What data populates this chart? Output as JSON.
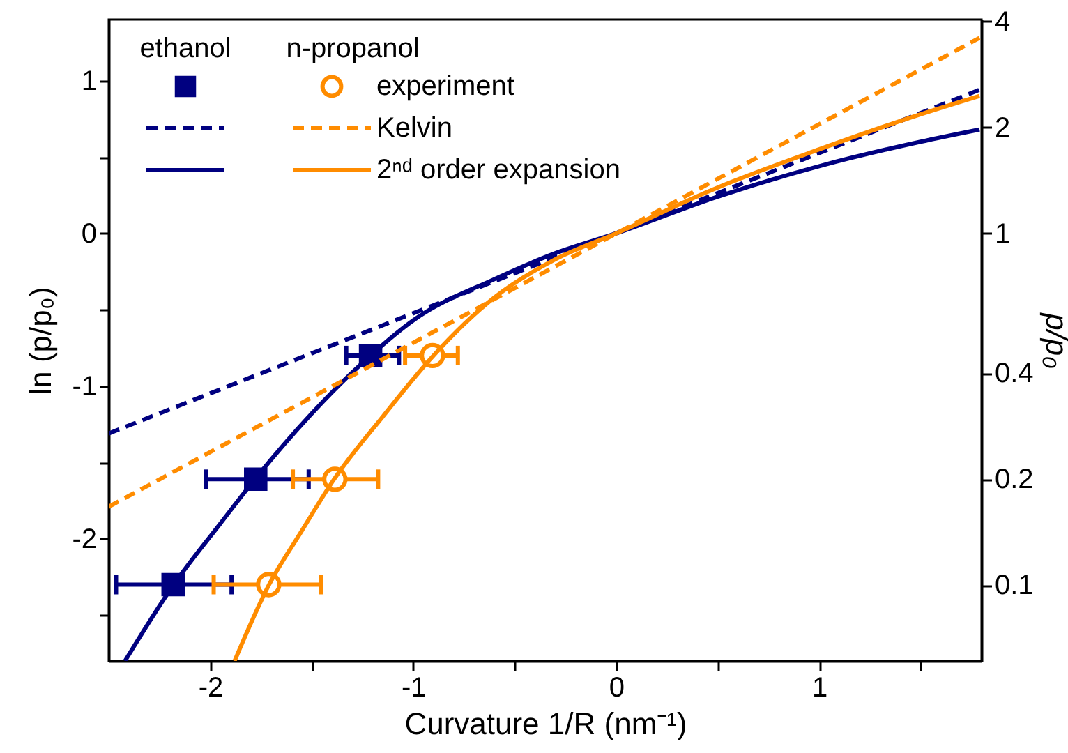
{
  "chart_data": {
    "type": "line",
    "xlabel": "Curvature 1/R (nm⁻¹)",
    "ylabel": "ln (p/p₀)",
    "y2label": "p/p₀",
    "xlim": [
      -2.5,
      1.8
    ],
    "xticks": [
      -2,
      {
        "value": -1.5,
        "label": null
      },
      -1,
      {
        "value": -0.5,
        "label": null
      },
      0,
      {
        "value": 0.5,
        "label": null
      },
      1,
      {
        "value": 1.5,
        "label": null
      }
    ],
    "ylim": [
      -2.8,
      1.4
    ],
    "yticks": [
      {
        "value": -2.5,
        "label": null
      },
      -2,
      {
        "value": -1.5,
        "label": null
      },
      -1,
      {
        "value": -0.5,
        "label": null
      },
      0,
      {
        "value": 0.5,
        "label": null
      },
      1
    ],
    "y2lim": [
      0.0608,
      4.055
    ],
    "y2ticks": [
      0.1,
      0.2,
      0.4,
      1,
      2,
      4
    ],
    "legend": "top left",
    "log": "y2",
    "annotations": [
      "ethanol",
      "n-propanol"
    ],
    "series": [
      {
        "type": "scatter",
        "marker": "square",
        "color": "#000080",
        "x": [
          -1.21,
          -1.776,
          -2.183
        ],
        "values": [
          -0.8,
          -1.61,
          -2.3
        ],
        "xerrors": [
          [
            -1.33,
            -1.07
          ],
          [
            -2.02,
            -1.515
          ],
          [
            -2.464,
            -1.895
          ]
        ]
      },
      {
        "line_style": "dashed",
        "color": "#000080",
        "x": [
          -2.5,
          1.79
        ],
        "values": [
          -1.31,
          0.94
        ]
      },
      {
        "line_style": "solid",
        "color": "#000080",
        "x": [
          -2.42,
          -2.18,
          -1.95,
          -1.78,
          -1.5,
          -1.21,
          -1.0,
          -0.6,
          -0.3,
          0,
          0.5,
          1.0,
          1.5,
          1.79
        ],
        "values": [
          -2.8,
          -2.3,
          -1.9,
          -1.61,
          -1.18,
          -0.8,
          -0.57,
          -0.3,
          -0.13,
          0,
          0.24,
          0.44,
          0.6,
          0.68
        ]
      },
      {
        "name": "experiment",
        "type": "scatter",
        "marker": "circle",
        "color": "#ff8c00",
        "x": [
          -0.905,
          -1.386,
          -1.712
        ],
        "values": [
          -0.8,
          -1.61,
          -2.3
        ],
        "xerrors": [
          [
            -1.04,
            -0.78
          ],
          [
            -1.593,
            -1.173
          ],
          [
            -1.983,
            -1.454
          ]
        ]
      },
      {
        "name": "Kelvin",
        "line_style": "dashed",
        "color": "#ff8c00",
        "x": [
          -2.5,
          1.79
        ],
        "values": [
          -1.79,
          1.28
        ]
      },
      {
        "name": "2ⁿᵈ order expansion",
        "line_style": "solid",
        "color": "#ff8c00",
        "x": [
          -1.88,
          -1.71,
          -1.55,
          -1.39,
          -1.15,
          -0.9,
          -0.6,
          -0.3,
          0,
          0.5,
          1.0,
          1.5,
          1.79
        ],
        "values": [
          -2.8,
          -2.3,
          -1.95,
          -1.61,
          -1.2,
          -0.8,
          -0.42,
          -0.17,
          0,
          0.3,
          0.55,
          0.78,
          0.9
        ]
      }
    ]
  }
}
